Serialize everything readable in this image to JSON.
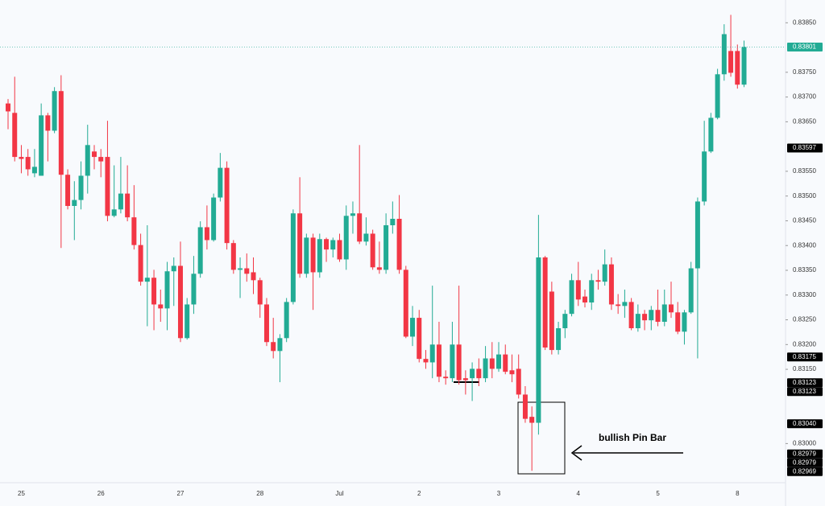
{
  "chart_data": {
    "type": "candlestick",
    "up_color": "#22ab94",
    "down_color": "#f23645",
    "ylim": [
      0.82921,
      0.83896
    ],
    "yticks": [
      {
        "value": 0.8385,
        "label": "0.83850"
      },
      {
        "value": 0.8375,
        "label": "0.83750"
      },
      {
        "value": 0.837,
        "label": "0.83700"
      },
      {
        "value": 0.8365,
        "label": "0.83650"
      },
      {
        "value": 0.8355,
        "label": "0.83550"
      },
      {
        "value": 0.835,
        "label": "0.83500"
      },
      {
        "value": 0.8345,
        "label": "0.83450"
      },
      {
        "value": 0.834,
        "label": "0.83400"
      },
      {
        "value": 0.8335,
        "label": "0.83350"
      },
      {
        "value": 0.833,
        "label": "0.83300"
      },
      {
        "value": 0.8325,
        "label": "0.83250"
      },
      {
        "value": 0.832,
        "label": "0.83200"
      },
      {
        "value": 0.8315,
        "label": "0.83150"
      },
      {
        "value": 0.83,
        "label": "0.83000"
      }
    ],
    "categories": [
      null,
      null,
      "25",
      null,
      null,
      null,
      null,
      null,
      null,
      null,
      null,
      null,
      null,
      null,
      "26",
      null,
      null,
      null,
      null,
      null,
      null,
      null,
      null,
      null,
      null,
      null,
      "27",
      null,
      null,
      null,
      null,
      null,
      null,
      null,
      null,
      null,
      null,
      null,
      "28",
      null,
      null,
      null,
      null,
      null,
      null,
      null,
      null,
      null,
      null,
      null,
      "Jul",
      null,
      null,
      null,
      null,
      null,
      null,
      null,
      null,
      null,
      null,
      null,
      "2",
      null,
      null,
      null,
      null,
      null,
      null,
      null,
      null,
      null,
      null,
      null,
      "3",
      null,
      null,
      null,
      null,
      null,
      null,
      null,
      null,
      null,
      null,
      null,
      "4",
      null,
      null,
      null,
      null,
      null,
      null,
      null,
      null,
      null,
      null,
      null,
      "5",
      null,
      null,
      null,
      null,
      null,
      null,
      null,
      null,
      null,
      null,
      null,
      "8",
      null
    ],
    "candles": [
      [
        0.83687,
        0.83696,
        0.83635,
        0.83671
      ],
      [
        0.83668,
        0.83741,
        0.8357,
        0.83579
      ],
      [
        0.83579,
        0.83603,
        0.83546,
        0.83575
      ],
      [
        0.83579,
        0.83595,
        0.83541,
        0.83554
      ],
      [
        0.83546,
        0.83595,
        0.83538,
        0.83559
      ],
      [
        0.83541,
        0.83687,
        0.83541,
        0.83663
      ],
      [
        0.83663,
        0.83668,
        0.8357,
        0.83632
      ],
      [
        0.83632,
        0.8372,
        0.83627,
        0.83712
      ],
      [
        0.83712,
        0.83744,
        0.83395,
        0.83543
      ],
      [
        0.83543,
        0.83554,
        0.83473,
        0.8348
      ],
      [
        0.8348,
        0.8353,
        0.83411,
        0.83492
      ],
      [
        0.83492,
        0.8357,
        0.83473,
        0.83541
      ],
      [
        0.83541,
        0.83644,
        0.83505,
        0.83603
      ],
      [
        0.8359,
        0.83603,
        0.83554,
        0.83579
      ],
      [
        0.83579,
        0.83595,
        0.83538,
        0.8357
      ],
      [
        0.83579,
        0.83652,
        0.83449,
        0.8346
      ],
      [
        0.8346,
        0.83562,
        0.83457,
        0.83473
      ],
      [
        0.83473,
        0.83579,
        0.83465,
        0.83505
      ],
      [
        0.83505,
        0.83562,
        0.83449,
        0.83457
      ],
      [
        0.83457,
        0.83522,
        0.83392,
        0.83401
      ],
      [
        0.83401,
        0.83424,
        0.83319,
        0.83327
      ],
      [
        0.83327,
        0.83441,
        0.83237,
        0.83335
      ],
      [
        0.83335,
        0.83351,
        0.83229,
        0.83281
      ],
      [
        0.83281,
        0.83311,
        0.83246,
        0.83273
      ],
      [
        0.83273,
        0.83367,
        0.83229,
        0.83348
      ],
      [
        0.83348,
        0.83376,
        0.83278,
        0.83359
      ],
      [
        0.83359,
        0.83408,
        0.83205,
        0.83213
      ],
      [
        0.83213,
        0.83294,
        0.8321,
        0.83281
      ],
      [
        0.83281,
        0.83379,
        0.83262,
        0.83343
      ],
      [
        0.83343,
        0.83449,
        0.83335,
        0.83437
      ],
      [
        0.83437,
        0.83481,
        0.83392,
        0.83411
      ],
      [
        0.83411,
        0.83505,
        0.83408,
        0.83497
      ],
      [
        0.83497,
        0.83587,
        0.83489,
        0.83557
      ],
      [
        0.83557,
        0.8357,
        0.83392,
        0.83405
      ],
      [
        0.83405,
        0.83411,
        0.83343,
        0.83351
      ],
      [
        0.83351,
        0.83376,
        0.83294,
        0.83354
      ],
      [
        0.83354,
        0.83384,
        0.83327,
        0.83343
      ],
      [
        0.83346,
        0.83376,
        0.83302,
        0.8333
      ],
      [
        0.8333,
        0.83335,
        0.83254,
        0.83281
      ],
      [
        0.83281,
        0.83294,
        0.83197,
        0.83205
      ],
      [
        0.83205,
        0.83254,
        0.83172,
        0.83187
      ],
      [
        0.83187,
        0.83221,
        0.83124,
        0.83213
      ],
      [
        0.83213,
        0.83294,
        0.83205,
        0.83286
      ],
      [
        0.83286,
        0.83473,
        0.83281,
        0.83465
      ],
      [
        0.83465,
        0.83538,
        0.83335,
        0.83343
      ],
      [
        0.83343,
        0.83424,
        0.83335,
        0.83416
      ],
      [
        0.83416,
        0.83424,
        0.8327,
        0.83346
      ],
      [
        0.83346,
        0.83424,
        0.83335,
        0.83413
      ],
      [
        0.83413,
        0.83416,
        0.83367,
        0.83392
      ],
      [
        0.83392,
        0.83416,
        0.83376,
        0.83411
      ],
      [
        0.83411,
        0.83424,
        0.83367,
        0.83372
      ],
      [
        0.83372,
        0.83481,
        0.83351,
        0.8346
      ],
      [
        0.8346,
        0.83489,
        0.83424,
        0.83465
      ],
      [
        0.83465,
        0.83603,
        0.83403,
        0.83408
      ],
      [
        0.83408,
        0.83457,
        0.834,
        0.83424
      ],
      [
        0.83424,
        0.83432,
        0.83351,
        0.83356
      ],
      [
        0.83356,
        0.83408,
        0.83343,
        0.83351
      ],
      [
        0.83351,
        0.83465,
        0.83343,
        0.83441
      ],
      [
        0.83441,
        0.83489,
        0.83424,
        0.83454
      ],
      [
        0.83454,
        0.83502,
        0.83343,
        0.83351
      ],
      [
        0.83351,
        0.83359,
        0.83213,
        0.83216
      ],
      [
        0.83216,
        0.83278,
        0.83197,
        0.83254
      ],
      [
        0.83254,
        0.8327,
        0.83164,
        0.83171
      ],
      [
        0.83171,
        0.83189,
        0.83151,
        0.83164
      ],
      [
        0.83164,
        0.83319,
        0.83132,
        0.832
      ],
      [
        0.832,
        0.83246,
        0.83124,
        0.83135
      ],
      [
        0.83135,
        0.83148,
        0.83119,
        0.83132
      ],
      [
        0.83132,
        0.83246,
        0.83124,
        0.832
      ],
      [
        0.832,
        0.83319,
        0.83119,
        0.83128
      ],
      [
        0.83132,
        0.83148,
        0.83099,
        0.83128
      ],
      [
        0.83132,
        0.83164,
        0.83086,
        0.83151
      ],
      [
        0.83151,
        0.83172,
        0.83116,
        0.83132
      ],
      [
        0.83132,
        0.83197,
        0.83124,
        0.83172
      ],
      [
        0.83172,
        0.83205,
        0.83132,
        0.83151
      ],
      [
        0.83151,
        0.83205,
        0.83145,
        0.8318
      ],
      [
        0.8318,
        0.832,
        0.8314,
        0.83145
      ],
      [
        0.83148,
        0.8318,
        0.83124,
        0.8314
      ],
      [
        0.83151,
        0.8318,
        0.83091,
        0.83099
      ],
      [
        0.83099,
        0.83116,
        0.83042,
        0.8305
      ],
      [
        0.83054,
        0.83075,
        0.82945,
        0.83042
      ],
      [
        0.83042,
        0.83462,
        0.83018,
        0.83376
      ],
      [
        0.83376,
        0.83379,
        0.83189,
        0.83194
      ],
      [
        0.83307,
        0.83327,
        0.8318,
        0.83189
      ],
      [
        0.83189,
        0.83246,
        0.8318,
        0.83233
      ],
      [
        0.83233,
        0.8327,
        0.83213,
        0.83262
      ],
      [
        0.83262,
        0.83343,
        0.83257,
        0.8333
      ],
      [
        0.8333,
        0.83367,
        0.83278,
        0.83291
      ],
      [
        0.83297,
        0.83311,
        0.83275,
        0.83285
      ],
      [
        0.83285,
        0.83343,
        0.8327,
        0.8333
      ],
      [
        0.8333,
        0.83351,
        0.83311,
        0.83327
      ],
      [
        0.83327,
        0.83392,
        0.83319,
        0.83362
      ],
      [
        0.83362,
        0.83376,
        0.8327,
        0.83281
      ],
      [
        0.83281,
        0.83302,
        0.83262,
        0.83278
      ],
      [
        0.83278,
        0.83311,
        0.83254,
        0.83286
      ],
      [
        0.83286,
        0.83294,
        0.83229,
        0.83233
      ],
      [
        0.83233,
        0.83281,
        0.83226,
        0.83262
      ],
      [
        0.83262,
        0.8327,
        0.83229,
        0.83249
      ],
      [
        0.83249,
        0.83278,
        0.83229,
        0.8327
      ],
      [
        0.8327,
        0.83311,
        0.83237,
        0.83246
      ],
      [
        0.83246,
        0.83311,
        0.83237,
        0.83281
      ],
      [
        0.83281,
        0.83327,
        0.83254,
        0.83265
      ],
      [
        0.83265,
        0.83286,
        0.83221,
        0.83226
      ],
      [
        0.83226,
        0.8327,
        0.832,
        0.83265
      ],
      [
        0.83265,
        0.83367,
        0.83262,
        0.83354
      ],
      [
        0.83354,
        0.83497,
        0.83172,
        0.83489
      ],
      [
        0.83489,
        0.83652,
        0.83481,
        0.8359
      ],
      [
        0.8359,
        0.83668,
        0.83587,
        0.83658
      ],
      [
        0.83658,
        0.83757,
        0.83655,
        0.83746
      ],
      [
        0.83746,
        0.83847,
        0.83733,
        0.83827
      ],
      [
        0.83793,
        0.83866,
        0.83741,
        0.83749
      ],
      [
        0.83793,
        0.83806,
        0.83717,
        0.83725
      ],
      [
        0.83725,
        0.83814,
        0.8372,
        0.83801
      ]
    ],
    "price_labels": [
      {
        "value": 0.83801,
        "label": "0.83801",
        "color": "#22ab94"
      },
      {
        "value": 0.83597,
        "label": "0.83597",
        "color": "#000000"
      },
      {
        "value": 0.83175,
        "label": "0.83175",
        "color": "#000000"
      },
      {
        "value": 0.83123,
        "label": "0.83123",
        "color": "#000000"
      },
      {
        "value": 0.83123,
        "label": "0.83123",
        "color": "#000000"
      },
      {
        "value": 0.8304,
        "label": "0.83040",
        "color": "#000000"
      },
      {
        "value": 0.82979,
        "label": "0.82979",
        "color": "#000000"
      },
      {
        "value": 0.82979,
        "label": "0.82979",
        "color": "#000000"
      },
      {
        "value": 0.82969,
        "label": "0.82969",
        "color": "#000000"
      }
    ],
    "annotation": "bullish Pin Bar"
  }
}
